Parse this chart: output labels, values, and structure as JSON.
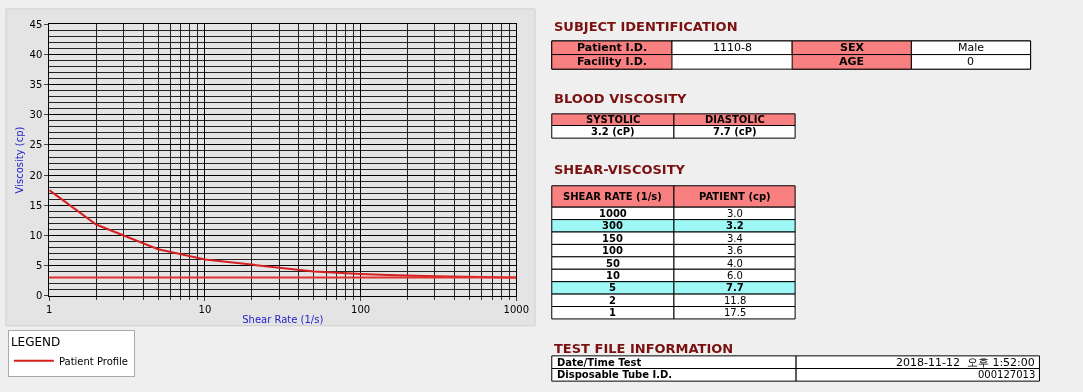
{
  "chart_data": {
    "type": "line",
    "xlabel": "Shear Rate (1/s)",
    "ylabel": "Viscosity (cp)",
    "legend_title": "LEGEND",
    "x": [
      1,
      2,
      5,
      10,
      50,
      100,
      150,
      300,
      1000
    ],
    "series": [
      {
        "name": "Patient Profile",
        "color": "#d42020",
        "values": [
          17.5,
          11.8,
          7.7,
          6.0,
          4.0,
          3.6,
          3.4,
          3.2,
          3.0
        ]
      }
    ],
    "log": "x",
    "xlim": [
      1,
      1000
    ],
    "xticks": [
      1,
      10,
      100,
      1000
    ],
    "ylim": [
      0,
      45
    ],
    "yticks": [
      0,
      5,
      10,
      15,
      20,
      25,
      30,
      35,
      40,
      45
    ],
    "grid": true,
    "legend": "bottom left",
    "marker": "none",
    "line_style": "solid",
    "ref_lines": [
      {
        "axis": "y",
        "value": 3,
        "color": "#e03030"
      }
    ],
    "annotations": [
      "SUBJECT IDENTIFICATION",
      "Patient I.D.",
      "1110-8",
      "SEX",
      "Male",
      "Facility I.D.",
      "AGE",
      "0",
      "BLOOD VISCOSITY",
      "SYSTOLIC",
      "DIASTOLIC",
      "3.2 (cP)",
      "7.7 (cP)",
      "SHEAR-VISCOSITY",
      "SHEAR RATE (1/s)",
      "PATIENT (cp)",
      "TEST FILE INFORMATION",
      "Date/Time Test",
      "2018-11-12  오후 1:52:00",
      "Disposable Tube I.D.",
      "000127013",
      "1000",
      "300",
      "150",
      "100",
      "50",
      "10",
      "5",
      "2",
      "1",
      "3.0",
      "3.2",
      "3.4",
      "3.6",
      "4.0",
      "6.0",
      "7.7",
      "11.8",
      "17.5"
    ]
  }
}
